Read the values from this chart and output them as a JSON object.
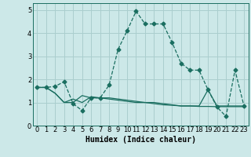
{
  "title": "",
  "xlabel": "Humidex (Indice chaleur)",
  "ylabel": "",
  "bg_color": "#cce8e8",
  "grid_color": "#aacece",
  "line_color": "#1a6e60",
  "xlim": [
    -0.5,
    23.5
  ],
  "ylim": [
    0,
    5.3
  ],
  "xtick_labels": [
    "0",
    "1",
    "2",
    "3",
    "4",
    "5",
    "6",
    "7",
    "8",
    "9",
    "10",
    "11",
    "12",
    "13",
    "14",
    "15",
    "16",
    "17",
    "18",
    "19",
    "20",
    "21",
    "22",
    "23"
  ],
  "xtick_positions": [
    0,
    1,
    2,
    3,
    4,
    5,
    6,
    7,
    8,
    9,
    10,
    11,
    12,
    13,
    14,
    15,
    16,
    17,
    18,
    19,
    20,
    21,
    22,
    23
  ],
  "ytick_positions": [
    0,
    1,
    2,
    3,
    4,
    5
  ],
  "ytick_labels": [
    "0",
    "1",
    "2",
    "3",
    "4",
    "5"
  ],
  "line1_x": [
    0,
    1,
    2,
    3,
    4,
    5,
    6,
    7,
    8,
    9,
    10,
    11,
    12,
    13,
    14,
    15,
    16,
    17,
    18,
    19,
    20,
    21,
    22,
    23
  ],
  "line1_y": [
    1.65,
    1.65,
    1.7,
    1.9,
    0.95,
    0.65,
    1.2,
    1.2,
    1.75,
    3.3,
    4.1,
    4.95,
    4.4,
    4.4,
    4.4,
    3.6,
    2.7,
    2.4,
    2.4,
    1.55,
    0.8,
    0.4,
    2.4,
    0.85
  ],
  "line2_x": [
    0,
    1,
    2,
    3,
    4,
    5,
    6,
    7,
    8,
    9,
    10,
    11,
    12,
    13,
    14,
    15,
    16,
    17,
    18,
    19,
    20,
    21,
    22,
    23
  ],
  "line2_y": [
    1.65,
    1.65,
    1.4,
    1.0,
    1.15,
    1.0,
    1.25,
    1.2,
    1.15,
    1.1,
    1.05,
    1.0,
    1.0,
    0.95,
    0.9,
    0.88,
    0.85,
    0.85,
    0.83,
    0.83,
    0.82,
    0.82,
    0.82,
    0.82
  ],
  "line3_x": [
    0,
    1,
    2,
    3,
    4,
    5,
    6,
    7,
    8,
    9,
    10,
    11,
    12,
    13,
    14,
    15,
    16,
    17,
    18,
    19,
    20,
    21,
    22,
    23
  ],
  "line3_y": [
    1.65,
    1.65,
    1.4,
    1.0,
    1.0,
    1.3,
    1.2,
    1.2,
    1.2,
    1.15,
    1.1,
    1.05,
    1.0,
    1.0,
    0.95,
    0.9,
    0.85,
    0.85,
    0.85,
    1.55,
    0.85,
    0.85,
    0.85,
    0.85
  ],
  "marker": "D",
  "marker_size": 2.5,
  "line_width": 0.9,
  "xlabel_fontsize": 7,
  "tick_fontsize": 6
}
